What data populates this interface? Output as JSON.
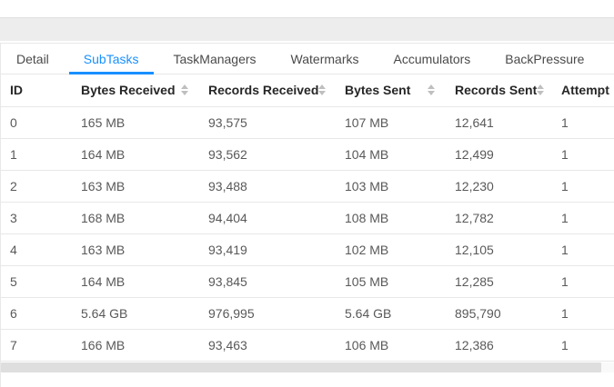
{
  "tabs": [
    {
      "label": "Detail",
      "active": false
    },
    {
      "label": "SubTasks",
      "active": true
    },
    {
      "label": "TaskManagers",
      "active": false
    },
    {
      "label": "Watermarks",
      "active": false
    },
    {
      "label": "Accumulators",
      "active": false
    },
    {
      "label": "BackPressure",
      "active": false
    }
  ],
  "table": {
    "columns": [
      {
        "label": "ID",
        "sortable": false
      },
      {
        "label": "Bytes Received",
        "sortable": true
      },
      {
        "label": "Records Received",
        "sortable": true
      },
      {
        "label": "Bytes Sent",
        "sortable": true
      },
      {
        "label": "Records Sent",
        "sortable": true
      },
      {
        "label": "Attempt",
        "sortable": false
      }
    ],
    "rows": [
      [
        "0",
        "165 MB",
        "93,575",
        "107 MB",
        "12,641",
        "1"
      ],
      [
        "1",
        "164 MB",
        "93,562",
        "104 MB",
        "12,499",
        "1"
      ],
      [
        "2",
        "163 MB",
        "93,488",
        "103 MB",
        "12,230",
        "1"
      ],
      [
        "3",
        "168 MB",
        "94,404",
        "108 MB",
        "12,782",
        "1"
      ],
      [
        "4",
        "163 MB",
        "93,419",
        "102 MB",
        "12,105",
        "1"
      ],
      [
        "5",
        "164 MB",
        "93,845",
        "105 MB",
        "12,285",
        "1"
      ],
      [
        "6",
        "5.64 GB",
        "976,995",
        "5.64 GB",
        "895,790",
        "1"
      ],
      [
        "7",
        "166 MB",
        "93,463",
        "106 MB",
        "12,386",
        "1"
      ]
    ]
  },
  "colors": {
    "accent": "#1890ff",
    "tab_text": "#4a4a4a",
    "header_text": "#262626",
    "body_text": "#595959",
    "row_border": "#e8e8e8",
    "top_strip_bg": "#ededed",
    "sorter_icon": "#bfbfbf",
    "scrollbar_thumb": "#dedede",
    "scrollbar_track": "#f9f9f9"
  }
}
